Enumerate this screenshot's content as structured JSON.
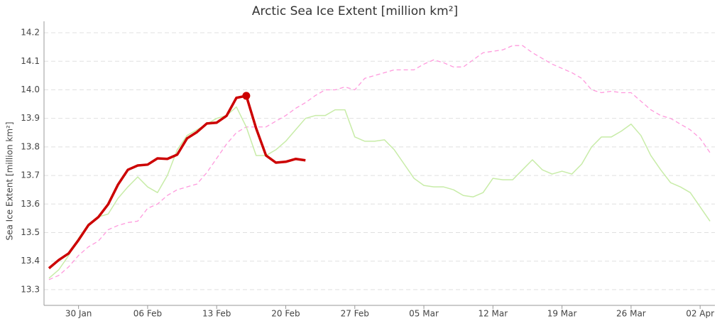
{
  "chart_data": {
    "type": "line",
    "title": "Arctic Sea Ice Extent [million km²]",
    "y_label": "Sea Ice Extent [million km²]",
    "categories": [
      null,
      null,
      null,
      "30 Jan",
      null,
      null,
      null,
      null,
      null,
      null,
      "06 Feb",
      null,
      null,
      null,
      null,
      null,
      null,
      "13 Feb",
      null,
      null,
      null,
      null,
      null,
      null,
      "20 Feb",
      null,
      null,
      null,
      null,
      null,
      null,
      "27 Feb",
      null,
      null,
      null,
      null,
      null,
      null,
      "05 Mar",
      null,
      null,
      null,
      null,
      null,
      null,
      "12 Mar",
      null,
      null,
      null,
      null,
      null,
      null,
      "19 Mar",
      null,
      null,
      null,
      null,
      null,
      null,
      "26 Mar",
      null,
      null,
      null,
      null,
      null,
      null,
      "02 Apr",
      null
    ],
    "ylim": [
      13.245,
      14.24
    ],
    "yticks": [
      13.3,
      13.4,
      13.5,
      13.6,
      13.7,
      13.8,
      13.9,
      {
        "value": 14,
        "label": "14.0"
      },
      14.1,
      14.2
    ],
    "grid": true,
    "series": [
      {
        "color": "#ff99dd",
        "dash": true,
        "width": 1.3,
        "values": [
          13.335,
          13.35,
          13.38,
          13.42,
          13.45,
          13.47,
          13.51,
          13.525,
          13.535,
          13.54,
          13.585,
          13.6,
          13.63,
          13.65,
          13.66,
          13.67,
          13.71,
          13.76,
          13.81,
          13.85,
          13.87,
          13.87,
          13.87,
          13.89,
          13.91,
          13.935,
          13.955,
          13.98,
          14.0,
          14.0,
          14.01,
          14.0,
          14.04,
          14.05,
          14.06,
          14.07,
          14.07,
          14.07,
          14.09,
          14.105,
          14.095,
          14.08,
          14.08,
          14.105,
          14.13,
          14.135,
          14.14,
          14.155,
          14.155,
          14.13,
          14.11,
          14.09,
          14.075,
          14.06,
          14.04,
          14.0,
          13.99,
          13.995,
          13.99,
          13.99,
          13.96,
          13.93,
          13.91,
          13.9,
          13.88,
          13.86,
          13.83,
          13.78
        ]
      },
      {
        "color": "#c8eca8",
        "dash": false,
        "width": 1.5,
        "values": [
          13.34,
          13.37,
          13.42,
          13.48,
          13.53,
          13.555,
          13.565,
          13.62,
          13.66,
          13.695,
          13.66,
          13.64,
          13.7,
          13.79,
          13.84,
          13.86,
          13.88,
          13.9,
          13.91,
          13.94,
          13.87,
          13.77,
          13.77,
          13.79,
          13.82,
          13.86,
          13.9,
          13.91,
          13.91,
          13.93,
          13.93,
          13.835,
          13.82,
          13.82,
          13.825,
          13.79,
          13.74,
          13.69,
          13.665,
          13.66,
          13.66,
          13.65,
          13.63,
          13.625,
          13.64,
          13.69,
          13.685,
          13.685,
          13.72,
          13.755,
          13.72,
          13.705,
          13.715,
          13.705,
          13.74,
          13.8,
          13.835,
          13.835,
          13.855,
          13.88,
          13.84,
          13.77,
          13.72,
          13.675,
          13.66,
          13.64,
          13.59,
          13.54
        ]
      },
      {
        "color": "#cc0000",
        "dash": false,
        "width": 3.5,
        "values": [
          13.375,
          13.404,
          13.427,
          13.474,
          13.526,
          13.554,
          13.599,
          13.668,
          13.72,
          13.735,
          13.738,
          13.76,
          13.758,
          13.773,
          13.83,
          13.852,
          13.882,
          13.885,
          13.909,
          13.972,
          13.979,
          13.865,
          13.77,
          13.745,
          13.748,
          13.758,
          13.753,
          null,
          null,
          null,
          null,
          null,
          null,
          null,
          null,
          null,
          null,
          null,
          null,
          null,
          null,
          null,
          null,
          null,
          null,
          null,
          null,
          null,
          null,
          null,
          null,
          null,
          null,
          null,
          null,
          null,
          null,
          null,
          null,
          null,
          null,
          null,
          null,
          null,
          null,
          null,
          null,
          null
        ]
      }
    ]
  }
}
